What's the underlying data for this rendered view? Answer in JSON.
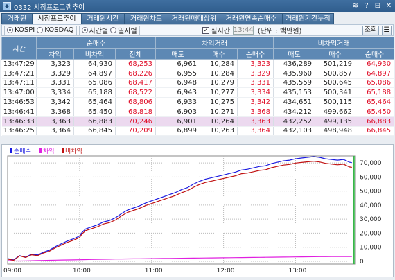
{
  "title": "0332 시장프로그램추이",
  "window_buttons": [
    "≋",
    "?",
    "⊟",
    "✕"
  ],
  "tabs": [
    {
      "label": "거래원",
      "w": 44
    },
    {
      "label": "시장프로추이",
      "w": 71,
      "active": true
    },
    {
      "label": "거래원시간",
      "w": 62
    },
    {
      "label": "거래원차트",
      "w": 63
    },
    {
      "label": "거래원매매상위",
      "w": 75
    },
    {
      "label": "거래원연속순매수",
      "w": 90
    },
    {
      "label": "거래원기간누적",
      "w": 75
    }
  ],
  "options": {
    "market1": "KOSPI",
    "market2": "KOSDAQ",
    "mode1": "시간별",
    "mode2": "일자별",
    "realtime": "실시간",
    "time": "13:44",
    "unit": "(단위 : 백만원)",
    "query": "조회"
  },
  "table": {
    "h_time": "시간",
    "groups": [
      "순매수",
      "차익거래",
      "비차익거래"
    ],
    "subs": [
      "차익",
      "비차익",
      "전체",
      "매도",
      "매수",
      "순매수",
      "매도",
      "매수",
      "순매수"
    ],
    "rows": [
      [
        "13:47:29",
        "3,323",
        "64,930",
        "68,253",
        "6,961",
        "10,284",
        "3,323",
        "436,289",
        "501,219",
        "64,930"
      ],
      [
        "13:47:21",
        "3,329",
        "64,897",
        "68,226",
        "6,955",
        "10,284",
        "3,329",
        "435,960",
        "500,857",
        "64,897"
      ],
      [
        "13:47:11",
        "3,331",
        "65,086",
        "68,417",
        "6,948",
        "10,279",
        "3,331",
        "435,559",
        "500,645",
        "65,086"
      ],
      [
        "13:47:00",
        "3,334",
        "65,188",
        "68,522",
        "6,943",
        "10,277",
        "3,334",
        "435,153",
        "500,341",
        "65,188"
      ],
      [
        "13:46:53",
        "3,342",
        "65,464",
        "68,806",
        "6,933",
        "10,275",
        "3,342",
        "434,651",
        "500,115",
        "65,464"
      ],
      [
        "13:46:41",
        "3,368",
        "65,450",
        "68,818",
        "6,903",
        "10,271",
        "3,368",
        "434,212",
        "499,662",
        "65,450"
      ],
      [
        "13:46:33",
        "3,363",
        "66,883",
        "70,246",
        "6,901",
        "10,264",
        "3,363",
        "432,252",
        "499,135",
        "66,883"
      ],
      [
        "13:46:25",
        "3,364",
        "66,845",
        "70,209",
        "6,899",
        "10,263",
        "3,364",
        "432,103",
        "498,948",
        "66,845"
      ]
    ]
  },
  "chart_data": {
    "type": "line",
    "legend": [
      "순매수",
      "차익",
      "비차익"
    ],
    "colors": [
      "#1a1ae0",
      "#e020e0",
      "#c01010"
    ],
    "xticks": [
      "09:00",
      "10:00",
      "11:00",
      "12:00",
      "13:00"
    ],
    "yticks": [
      "70,000",
      "60,000",
      "50,000",
      "40,000",
      "30,000",
      "20,000",
      "10,000",
      "0"
    ],
    "ylim": [
      -2000,
      75000
    ],
    "xlim": [
      0,
      290
    ],
    "x": [
      0,
      5,
      10,
      15,
      20,
      25,
      30,
      35,
      40,
      45,
      50,
      55,
      60,
      62,
      65,
      70,
      75,
      80,
      85,
      90,
      95,
      100,
      105,
      110,
      115,
      120,
      125,
      130,
      135,
      140,
      145,
      150,
      155,
      160,
      165,
      170,
      175,
      180,
      185,
      190,
      195,
      200,
      205,
      210,
      215,
      220,
      225,
      230,
      235,
      240,
      245,
      250,
      255,
      260,
      265,
      270,
      275,
      280,
      285,
      287
    ],
    "total": [
      2000,
      1000,
      4000,
      3000,
      5000,
      4500,
      6500,
      8000,
      10500,
      12500,
      14500,
      16000,
      18000,
      20500,
      23000,
      24500,
      26000,
      28000,
      29000,
      31000,
      34000,
      36500,
      38000,
      39500,
      41500,
      43000,
      44500,
      46000,
      47500,
      49000,
      51000,
      52500,
      55000,
      57000,
      58500,
      59500,
      60500,
      61500,
      62500,
      63500,
      65000,
      65500,
      66500,
      67500,
      68000,
      69500,
      70500,
      71500,
      72000,
      73000,
      73500,
      74000,
      74500,
      74000,
      73000,
      72500,
      72000,
      72500,
      70500,
      70200
    ],
    "arb": [
      500,
      300,
      200,
      300,
      400,
      500,
      600,
      700,
      800,
      900,
      950,
      1000,
      1100,
      1150,
      1200,
      1300,
      1400,
      1450,
      1500,
      1600,
      1650,
      1700,
      1750,
      1800,
      1850,
      1900,
      1950,
      2000,
      2050,
      2100,
      2150,
      2200,
      2250,
      2300,
      2350,
      2400,
      2450,
      2500,
      2550,
      2600,
      2650,
      2700,
      2750,
      2800,
      2850,
      2900,
      2950,
      3000,
      3050,
      3100,
      3150,
      3200,
      3250,
      3280,
      3300,
      3320,
      3340,
      3350,
      3360,
      3364
    ]
  }
}
